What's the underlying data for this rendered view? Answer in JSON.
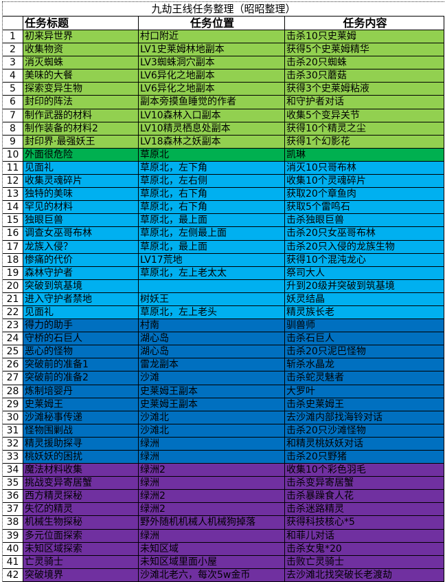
{
  "title": "九劫王线任务整理（昭昭整理）",
  "headers": [
    "",
    "任务标题",
    "任务位置",
    "任务内容"
  ],
  "colors": {
    "green_light": "#92d050",
    "green_dark": "#00b050",
    "blue_light": "#00b0f0",
    "blue_dark": "#0070c0",
    "purple": "#7030a0"
  },
  "rows": [
    {
      "n": "1",
      "title": "初来异世界",
      "loc": "村口附近",
      "content": "击杀10只史莱姆",
      "color": "#92d050"
    },
    {
      "n": "2",
      "title": "收集物资",
      "loc": "LV1史莱姆林地副本",
      "content": "获得5个史莱姆精华",
      "color": "#92d050"
    },
    {
      "n": "3",
      "title": "消灭蜘蛛",
      "loc": "LV3蜘蛛洞穴副本",
      "content": "击杀20只蜘蛛",
      "color": "#92d050"
    },
    {
      "n": "4",
      "title": "美味的大餐",
      "loc": "LV6异化之地副本",
      "content": "击杀30只蘑菇",
      "color": "#92d050"
    },
    {
      "n": "5",
      "title": "探索变异生物",
      "loc": "LV6异化之地副本",
      "content": "获得3个史莱姆粘液",
      "color": "#92d050"
    },
    {
      "n": "6",
      "title": "封印的阵法",
      "loc": "副本旁摸鱼睡觉的作者",
      "content": "和守护者对话",
      "color": "#92d050"
    },
    {
      "n": "7",
      "title": "制作武器的材料",
      "loc": "LV10森林入口副本",
      "content": "收集5个变异关节",
      "color": "#92d050"
    },
    {
      "n": "8",
      "title": "制作装备的材料2",
      "loc": "LV10精灵栖息处副本",
      "content": "获得10个精灵之尘",
      "color": "#92d050"
    },
    {
      "n": "9",
      "title": "封印界·最强妖王",
      "loc": "LV18森林之妖副本",
      "content": "获得1个幻影花",
      "color": "#92d050"
    },
    {
      "n": "10",
      "title": "外面很危险",
      "loc": "草原北",
      "content": "凯琳",
      "color": "#00b050"
    },
    {
      "n": "11",
      "title": "见面礼",
      "loc": "草原北，左下角",
      "content": "消灭10只哥布林",
      "color": "#00b0f0"
    },
    {
      "n": "12",
      "title": "收集灵魂碎片",
      "loc": "草原北，左右侧",
      "content": "收集10个灵魂碎片",
      "color": "#00b0f0"
    },
    {
      "n": "13",
      "title": "独特的美味",
      "loc": "草原北，右下角",
      "content": "获取20个章鱼肉",
      "color": "#00b0f0"
    },
    {
      "n": "14",
      "title": "罕见的材料",
      "loc": "草原北，右下角",
      "content": "获取5个雷鸣石",
      "color": "#00b0f0"
    },
    {
      "n": "15",
      "title": "独眼巨兽",
      "loc": "草原北，最上面",
      "content": "击杀独眼巨兽",
      "color": "#00b0f0"
    },
    {
      "n": "16",
      "title": "调查女巫哥布林",
      "loc": "草原北，左侧最上面",
      "content": "击杀20只女巫哥布林",
      "color": "#00b0f0"
    },
    {
      "n": "17",
      "title": "龙族入侵？",
      "loc": "草原北，最上面",
      "content": "击杀20只入侵的龙族生物",
      "color": "#00b0f0"
    },
    {
      "n": "18",
      "title": "惨痛的代价",
      "loc": "LV17荒地",
      "content": "获得10个混沌龙心",
      "color": "#00b0f0"
    },
    {
      "n": "19",
      "title": "森林守护者",
      "loc": "草原北，左上老太太",
      "content": "祭司大人",
      "color": "#00b0f0"
    },
    {
      "n": "20",
      "title": "突破到筑基境",
      "loc": "",
      "content": "升到20级并突破到筑基境",
      "color": "#00b0f0"
    },
    {
      "n": "21",
      "title": "进入守护者禁地",
      "loc": "树妖王",
      "content": "妖灵结晶",
      "color": "#00b0f0"
    },
    {
      "n": "22",
      "title": "见面礼",
      "loc": "草原北，左上老头",
      "content": "精灵族长老",
      "color": "#00b0f0"
    },
    {
      "n": "23",
      "title": "得力的助手",
      "loc": "村南",
      "content": "驯兽师",
      "color": "#0070c0"
    },
    {
      "n": "24",
      "title": "守桥的石巨人",
      "loc": "湖心岛",
      "content": "击杀石巨人",
      "color": "#0070c0"
    },
    {
      "n": "25",
      "title": "恶心的怪物",
      "loc": "湖心岛",
      "content": "击杀20只泥巴怪物",
      "color": "#0070c0"
    },
    {
      "n": "26",
      "title": "突破前的准备1",
      "loc": "雷龙副本",
      "content": "斩杀水晶龙",
      "color": "#0070c0"
    },
    {
      "n": "27",
      "title": "突破前的准备2",
      "loc": "沙滩",
      "content": "击杀蛇灵魅者",
      "color": "#0070c0"
    },
    {
      "n": "28",
      "title": "炼制培婴丹",
      "loc": "史莱姆王副本",
      "content": "大罗叶",
      "color": "#0070c0"
    },
    {
      "n": "29",
      "title": "史莱姆王",
      "loc": "史莱姆王副本",
      "content": "击杀史莱姆王",
      "color": "#0070c0"
    },
    {
      "n": "30",
      "title": "沙滩秘事传递",
      "loc": "沙滩北",
      "content": "去沙滩内部找海铃对话",
      "color": "#0070c0"
    },
    {
      "n": "31",
      "title": "怪物围剿战",
      "loc": "沙滩北",
      "content": "击杀20只沙滩怪物",
      "color": "#0070c0"
    },
    {
      "n": "32",
      "title": "精灵援助探寻",
      "loc": "绿洲",
      "content": "和精灵桃妖妖对话",
      "color": "#0070c0"
    },
    {
      "n": "33",
      "title": "桃妖妖的困扰",
      "loc": "绿洲",
      "content": "击杀20只野猪",
      "color": "#0070c0"
    },
    {
      "n": "34",
      "title": "魔法材料收集",
      "loc": "绿洲2",
      "content": "收集10个彩色羽毛",
      "color": "#7030a0"
    },
    {
      "n": "35",
      "title": "挑战变异寄居蟹",
      "loc": "绿洲",
      "content": "击杀变异寄居蟹",
      "color": "#7030a0"
    },
    {
      "n": "36",
      "title": "西方精灵探秘",
      "loc": "绿洲2",
      "content": "击杀暴躁食人花",
      "color": "#7030a0"
    },
    {
      "n": "37",
      "title": "失忆的精灵",
      "loc": "绿洲2",
      "content": "击杀迷路精灵",
      "color": "#7030a0"
    },
    {
      "n": "38",
      "title": "机械生物探秘",
      "loc": "野外随机机械人机械狗掉落",
      "content": "获得科技核心*5",
      "color": "#7030a0"
    },
    {
      "n": "39",
      "title": "多元位面探索",
      "loc": "绿洲",
      "content": "和菲儿对话",
      "color": "#7030a0"
    },
    {
      "n": "40",
      "title": "未知区域探索",
      "loc": "未知区域",
      "content": "击杀女鬼*20",
      "color": "#7030a0"
    },
    {
      "n": "41",
      "title": "亡灵骑士",
      "loc": "未知区域里面小屋",
      "content": "击败亡灵骑士",
      "color": "#7030a0"
    },
    {
      "n": "42",
      "title": "突破境界",
      "loc": "沙滩北老六，每次5w金币",
      "content": "去沙滩北找突破长老渡劫",
      "color": "#7030a0"
    }
  ]
}
